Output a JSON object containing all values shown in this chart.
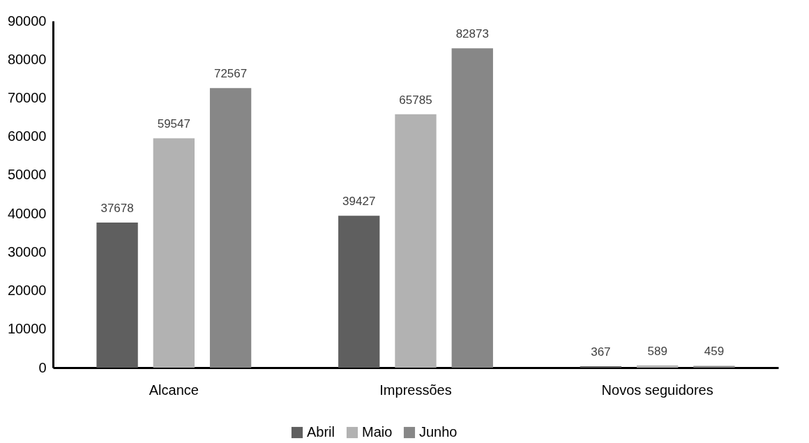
{
  "chart_data": {
    "type": "bar",
    "categories": [
      "Alcance",
      "Impressões",
      "Novos seguidores"
    ],
    "series": [
      {
        "name": "Abril",
        "color": "#5f5f5f",
        "values": [
          37678,
          39427,
          367
        ]
      },
      {
        "name": "Maio",
        "color": "#b2b2b2",
        "values": [
          59547,
          65785,
          589
        ]
      },
      {
        "name": "Junho",
        "color": "#878787",
        "values": [
          72567,
          82873,
          459
        ]
      }
    ],
    "ylim": [
      0,
      90000
    ],
    "yticks": [
      0,
      10000,
      20000,
      30000,
      40000,
      50000,
      60000,
      70000,
      80000,
      90000
    ],
    "grid": false,
    "legend": "bottom",
    "data_labels": true
  }
}
